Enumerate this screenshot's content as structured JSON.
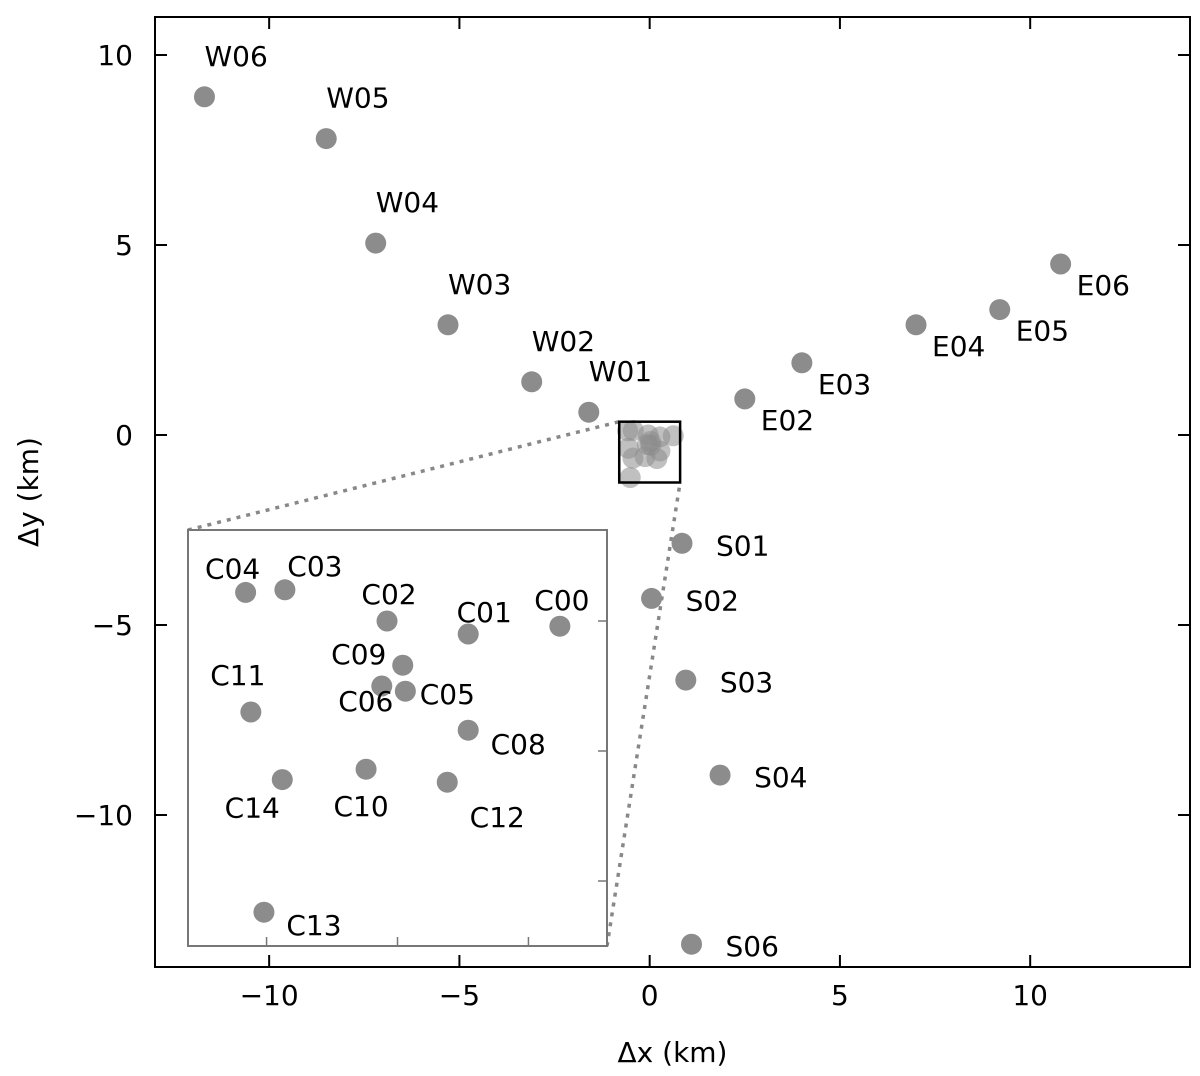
{
  "chart_data": {
    "type": "scatter",
    "title": "",
    "xlabel": "Δx (km)",
    "ylabel": "Δy (km)",
    "xlim": [
      -13,
      14.2
    ],
    "ylim": [
      -14,
      11
    ],
    "xticks": [
      -10,
      -5,
      0,
      5,
      10
    ],
    "yticks": [
      10,
      5,
      0,
      -5,
      -10
    ],
    "xtick_labels": [
      "−10",
      "−5",
      "0",
      "5",
      "10"
    ],
    "ytick_labels": [
      "10",
      "5",
      "0",
      "−5",
      "−10"
    ],
    "grid": false,
    "legend": "none",
    "marker_color": "#8c8c8c",
    "stations": [
      {
        "label": "W06",
        "x": -11.7,
        "y": 8.9
      },
      {
        "label": "W05",
        "x": -8.5,
        "y": 7.8
      },
      {
        "label": "W04",
        "x": -7.2,
        "y": 5.05
      },
      {
        "label": "W03",
        "x": -5.3,
        "y": 2.9
      },
      {
        "label": "W02",
        "x": -3.1,
        "y": 1.4
      },
      {
        "label": "W01",
        "x": -1.6,
        "y": 0.6
      },
      {
        "label": "E02",
        "x": 2.5,
        "y": 0.95
      },
      {
        "label": "E03",
        "x": 4.0,
        "y": 1.9
      },
      {
        "label": "E04",
        "x": 7.0,
        "y": 2.9
      },
      {
        "label": "E05",
        "x": 9.2,
        "y": 3.3
      },
      {
        "label": "E06",
        "x": 10.8,
        "y": 4.5
      },
      {
        "label": "S01",
        "x": 0.85,
        "y": -2.85
      },
      {
        "label": "S02",
        "x": 0.05,
        "y": -4.3
      },
      {
        "label": "S03",
        "x": 0.95,
        "y": -6.45
      },
      {
        "label": "S04",
        "x": 1.85,
        "y": -8.95
      },
      {
        "label": "S06",
        "x": 1.1,
        "y": -13.4
      }
    ],
    "inset": {
      "xlim": [
        -0.8,
        0.8
      ],
      "ylim": [
        -1.25,
        0.35
      ],
      "stations": [
        {
          "label": "C00",
          "x": 0.62,
          "y": -0.02
        },
        {
          "label": "C01",
          "x": 0.27,
          "y": -0.05
        },
        {
          "label": "C02",
          "x": -0.04,
          "y": 0.0
        },
        {
          "label": "C03",
          "x": -0.43,
          "y": 0.12
        },
        {
          "label": "C04",
          "x": -0.58,
          "y": 0.11
        },
        {
          "label": "C05",
          "x": 0.03,
          "y": -0.27
        },
        {
          "label": "C06",
          "x": -0.06,
          "y": -0.25
        },
        {
          "label": "C08",
          "x": 0.27,
          "y": -0.42
        },
        {
          "label": "C09",
          "x": 0.02,
          "y": -0.17
        },
        {
          "label": "C10",
          "x": -0.12,
          "y": -0.57
        },
        {
          "label": "C11",
          "x": -0.56,
          "y": -0.35
        },
        {
          "label": "C12",
          "x": 0.19,
          "y": -0.62
        },
        {
          "label": "C13",
          "x": -0.51,
          "y": -1.12
        },
        {
          "label": "C14",
          "x": -0.44,
          "y": -0.61
        }
      ]
    }
  }
}
